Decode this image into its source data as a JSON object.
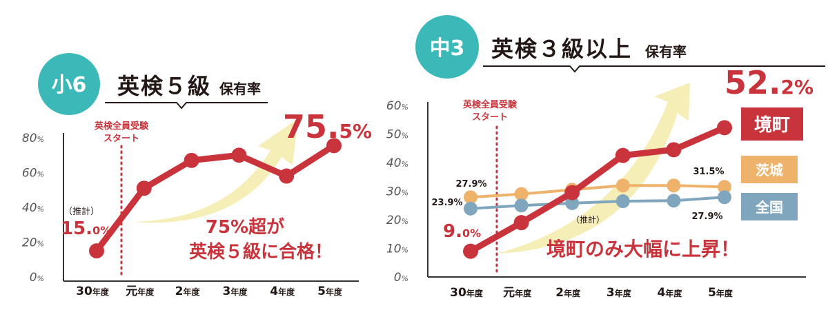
{
  "colors": {
    "teal": "#3bb8b8",
    "red": "#c9343c",
    "orange": "#efb26b",
    "blue": "#7fa6bd",
    "arrow": "#f6eeb7",
    "axis": "#333333",
    "text": "#231815"
  },
  "chart_data": [
    {
      "type": "line",
      "badge": "小6",
      "title": "英検５級",
      "title_suffix": "保有率",
      "ylim": [
        0,
        80
      ],
      "yticks": [
        0,
        20,
        40,
        60,
        80
      ],
      "ytick_unit": "%",
      "categories": [
        "30",
        "元",
        "2",
        "3",
        "4",
        "5"
      ],
      "category_suffix": "年度",
      "series": [
        {
          "values": [
            15.0,
            51,
            67,
            70,
            58,
            75.5
          ]
        }
      ],
      "marker_label": [
        "英検全員受験",
        "スタート"
      ],
      "marker_after_index": 0,
      "annotations": {
        "first_value": "15.",
        "first_value_small": "0%",
        "first_note": "（推計）",
        "last_value": "75.",
        "last_value_small": "5%",
        "message": [
          "75%超が",
          "英検５級に合格！"
        ]
      }
    },
    {
      "type": "line",
      "badge": "中3",
      "title": "英検３級以上",
      "title_suffix": "保有率",
      "ylim": [
        0,
        60
      ],
      "yticks": [
        0,
        10,
        20,
        30,
        40,
        50,
        60
      ],
      "ytick_unit": "%",
      "categories": [
        "30",
        "元",
        "2",
        "3",
        "4",
        "5"
      ],
      "category_suffix": "年度",
      "series": [
        {
          "name": "境町",
          "values": [
            9.0,
            19,
            29.5,
            42.5,
            44.5,
            52.2
          ]
        },
        {
          "name": "茨城",
          "values": [
            27.9,
            29,
            30.5,
            32,
            32,
            31.5
          ]
        },
        {
          "name": "全国",
          "values": [
            23.9,
            25,
            25.8,
            26.5,
            26.7,
            27.9
          ]
        }
      ],
      "marker_label": [
        "英検全員受験",
        "スタート"
      ],
      "marker_after_index": 0,
      "annotations": {
        "town_first": "9.",
        "town_first_small": "0%",
        "town_last": "52.",
        "town_last_small": "2%",
        "ibaraki_first": "27.9%",
        "ibaraki_last": "31.5%",
        "national_first": "23.9%",
        "national_last": "27.9%",
        "estimate_note": "（推計）",
        "message": "境町のみ大幅に上昇！"
      }
    }
  ]
}
